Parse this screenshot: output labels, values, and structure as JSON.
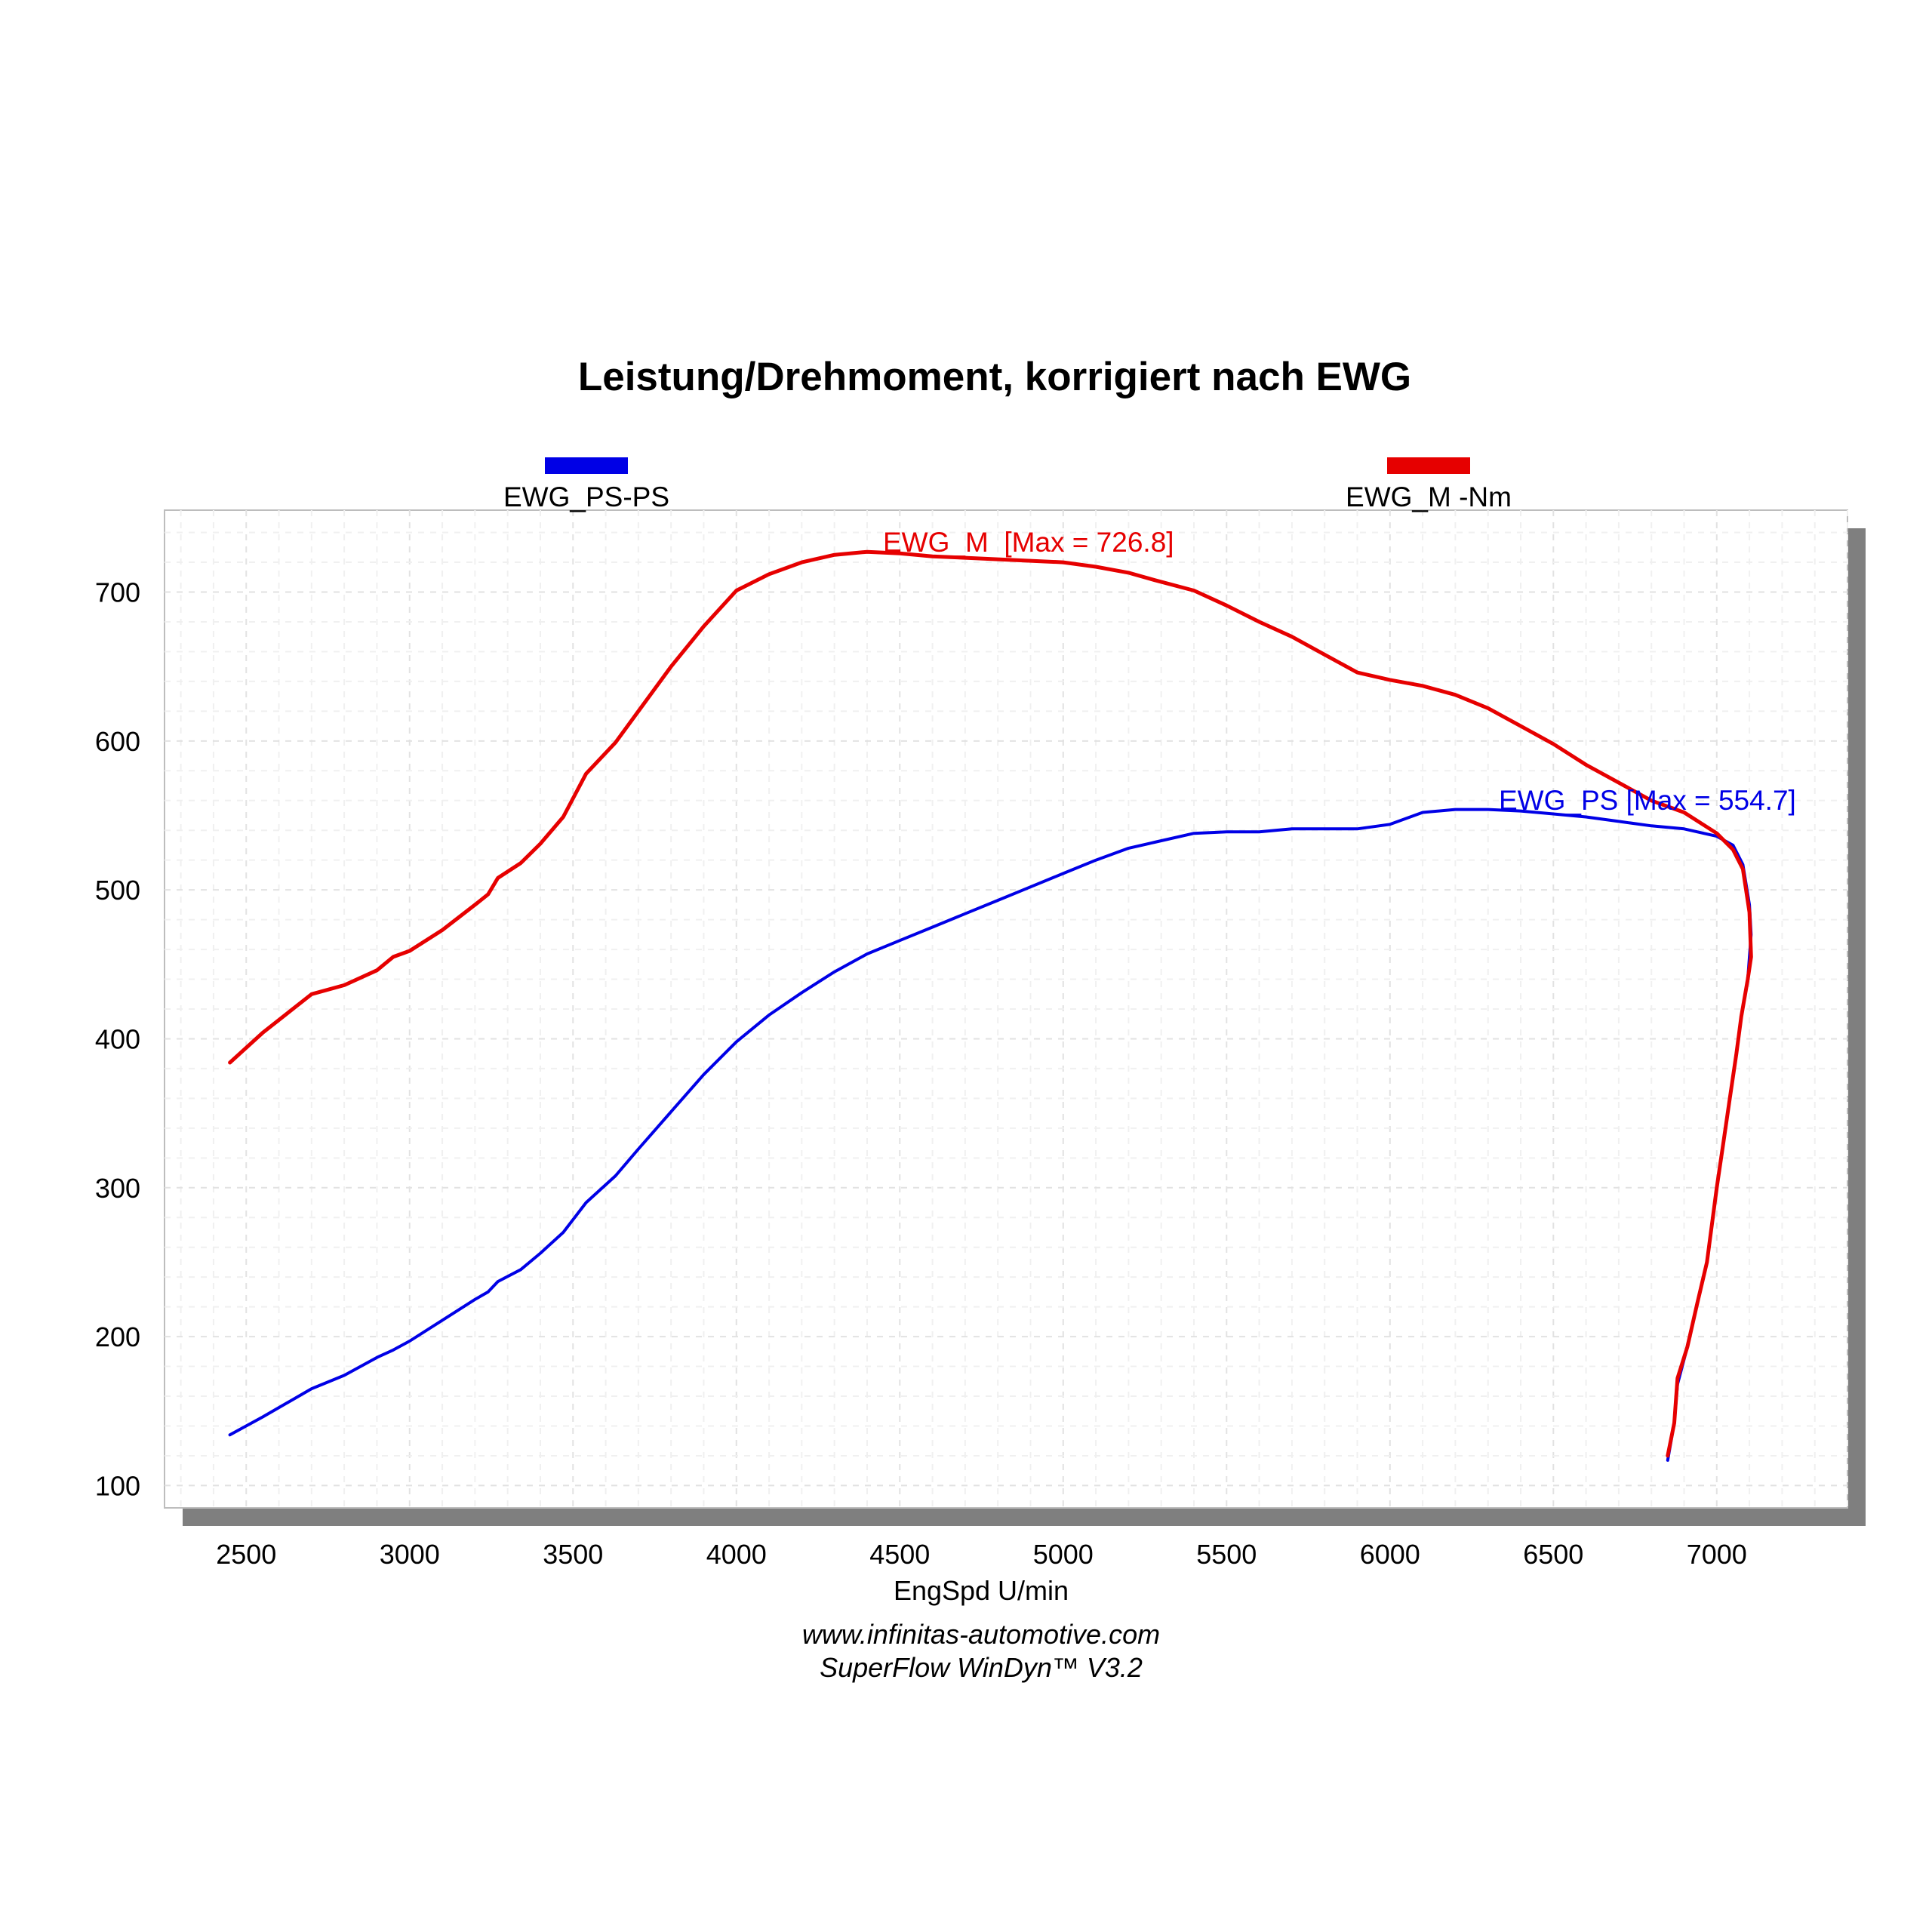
{
  "chart_data": {
    "type": "line",
    "title": "Leistung/Drehmoment, korrigiert nach EWG",
    "xlabel": "EngSpd U/min",
    "ylabel": "",
    "xlim": [
      2250,
      7400
    ],
    "ylim": [
      85,
      755
    ],
    "x_ticks": [
      2500,
      3000,
      3500,
      4000,
      4500,
      5000,
      5500,
      6000,
      6500,
      7000
    ],
    "y_ticks": [
      100,
      200,
      300,
      400,
      500,
      600,
      700
    ],
    "grid": true,
    "legend_position": "top",
    "credits": [
      "www.infinitas-automotive.com",
      "SuperFlow WinDyn™ V3.2"
    ],
    "colors": {
      "power": "#0000e6",
      "torque": "#e60000"
    },
    "series": [
      {
        "name": "EWG_PS-PS",
        "annotation": "EWG_PS [Max = 554.7]",
        "color": "#0000e6",
        "points": [
          [
            2450,
            134
          ],
          [
            2550,
            146
          ],
          [
            2700,
            165
          ],
          [
            2800,
            174
          ],
          [
            2900,
            186
          ],
          [
            2950,
            191
          ],
          [
            3000,
            197
          ],
          [
            3100,
            211
          ],
          [
            3200,
            225
          ],
          [
            3240,
            230
          ],
          [
            3270,
            237
          ],
          [
            3340,
            245
          ],
          [
            3400,
            256
          ],
          [
            3470,
            270
          ],
          [
            3540,
            290
          ],
          [
            3630,
            308
          ],
          [
            3700,
            326
          ],
          [
            3800,
            351
          ],
          [
            3900,
            376
          ],
          [
            4000,
            398
          ],
          [
            4100,
            416
          ],
          [
            4200,
            431
          ],
          [
            4300,
            445
          ],
          [
            4400,
            457
          ],
          [
            4500,
            466
          ],
          [
            4600,
            475
          ],
          [
            4700,
            484
          ],
          [
            4800,
            493
          ],
          [
            4900,
            502
          ],
          [
            5000,
            511
          ],
          [
            5100,
            520
          ],
          [
            5200,
            528
          ],
          [
            5280,
            532
          ],
          [
            5400,
            538
          ],
          [
            5500,
            539
          ],
          [
            5600,
            539
          ],
          [
            5700,
            541
          ],
          [
            5800,
            541
          ],
          [
            5900,
            541
          ],
          [
            6000,
            544
          ],
          [
            6100,
            552
          ],
          [
            6200,
            554
          ],
          [
            6300,
            554
          ],
          [
            6400,
            553
          ],
          [
            6500,
            551
          ],
          [
            6600,
            549
          ],
          [
            6700,
            546
          ],
          [
            6800,
            543
          ],
          [
            6900,
            541
          ],
          [
            7000,
            536
          ],
          [
            7050,
            530
          ],
          [
            7080,
            517
          ],
          [
            7100,
            490
          ],
          [
            7105,
            470
          ],
          [
            7095,
            440
          ],
          [
            7075,
            415
          ],
          [
            7060,
            390
          ],
          [
            7040,
            360
          ],
          [
            7020,
            330
          ],
          [
            7000,
            300
          ],
          [
            6985,
            275
          ],
          [
            6970,
            250
          ],
          [
            6940,
            222
          ],
          [
            6910,
            193
          ],
          [
            6880,
            168
          ],
          [
            6870,
            142
          ],
          [
            6850,
            117
          ]
        ]
      },
      {
        "name": "EWG_M -Nm",
        "annotation": "EWG_M  [Max = 726.8]",
        "color": "#e60000",
        "points": [
          [
            2450,
            384
          ],
          [
            2550,
            404
          ],
          [
            2700,
            430
          ],
          [
            2800,
            436
          ],
          [
            2900,
            446
          ],
          [
            2950,
            455
          ],
          [
            3000,
            459
          ],
          [
            3100,
            473
          ],
          [
            3200,
            490
          ],
          [
            3240,
            497
          ],
          [
            3270,
            508
          ],
          [
            3340,
            518
          ],
          [
            3400,
            531
          ],
          [
            3470,
            549
          ],
          [
            3540,
            578
          ],
          [
            3630,
            599
          ],
          [
            3700,
            620
          ],
          [
            3800,
            650
          ],
          [
            3900,
            677
          ],
          [
            4000,
            701
          ],
          [
            4100,
            712
          ],
          [
            4200,
            720
          ],
          [
            4300,
            725
          ],
          [
            4400,
            727
          ],
          [
            4500,
            726
          ],
          [
            4600,
            724
          ],
          [
            4700,
            723
          ],
          [
            4800,
            722
          ],
          [
            4900,
            721
          ],
          [
            5000,
            720
          ],
          [
            5100,
            717
          ],
          [
            5200,
            713
          ],
          [
            5280,
            708
          ],
          [
            5400,
            701
          ],
          [
            5500,
            691
          ],
          [
            5600,
            680
          ],
          [
            5700,
            670
          ],
          [
            5800,
            658
          ],
          [
            5900,
            646
          ],
          [
            6000,
            641
          ],
          [
            6100,
            637
          ],
          [
            6200,
            631
          ],
          [
            6300,
            622
          ],
          [
            6400,
            610
          ],
          [
            6500,
            598
          ],
          [
            6600,
            584
          ],
          [
            6700,
            572
          ],
          [
            6800,
            560
          ],
          [
            6900,
            552
          ],
          [
            7000,
            538
          ],
          [
            7050,
            527
          ],
          [
            7080,
            514
          ],
          [
            7100,
            485
          ],
          [
            7105,
            455
          ],
          [
            7095,
            440
          ],
          [
            7075,
            415
          ],
          [
            7060,
            390
          ],
          [
            7040,
            360
          ],
          [
            7020,
            330
          ],
          [
            7000,
            300
          ],
          [
            6985,
            275
          ],
          [
            6970,
            250
          ],
          [
            6940,
            222
          ],
          [
            6910,
            193
          ],
          [
            6880,
            172
          ],
          [
            6870,
            142
          ],
          [
            6850,
            120
          ]
        ]
      }
    ]
  }
}
